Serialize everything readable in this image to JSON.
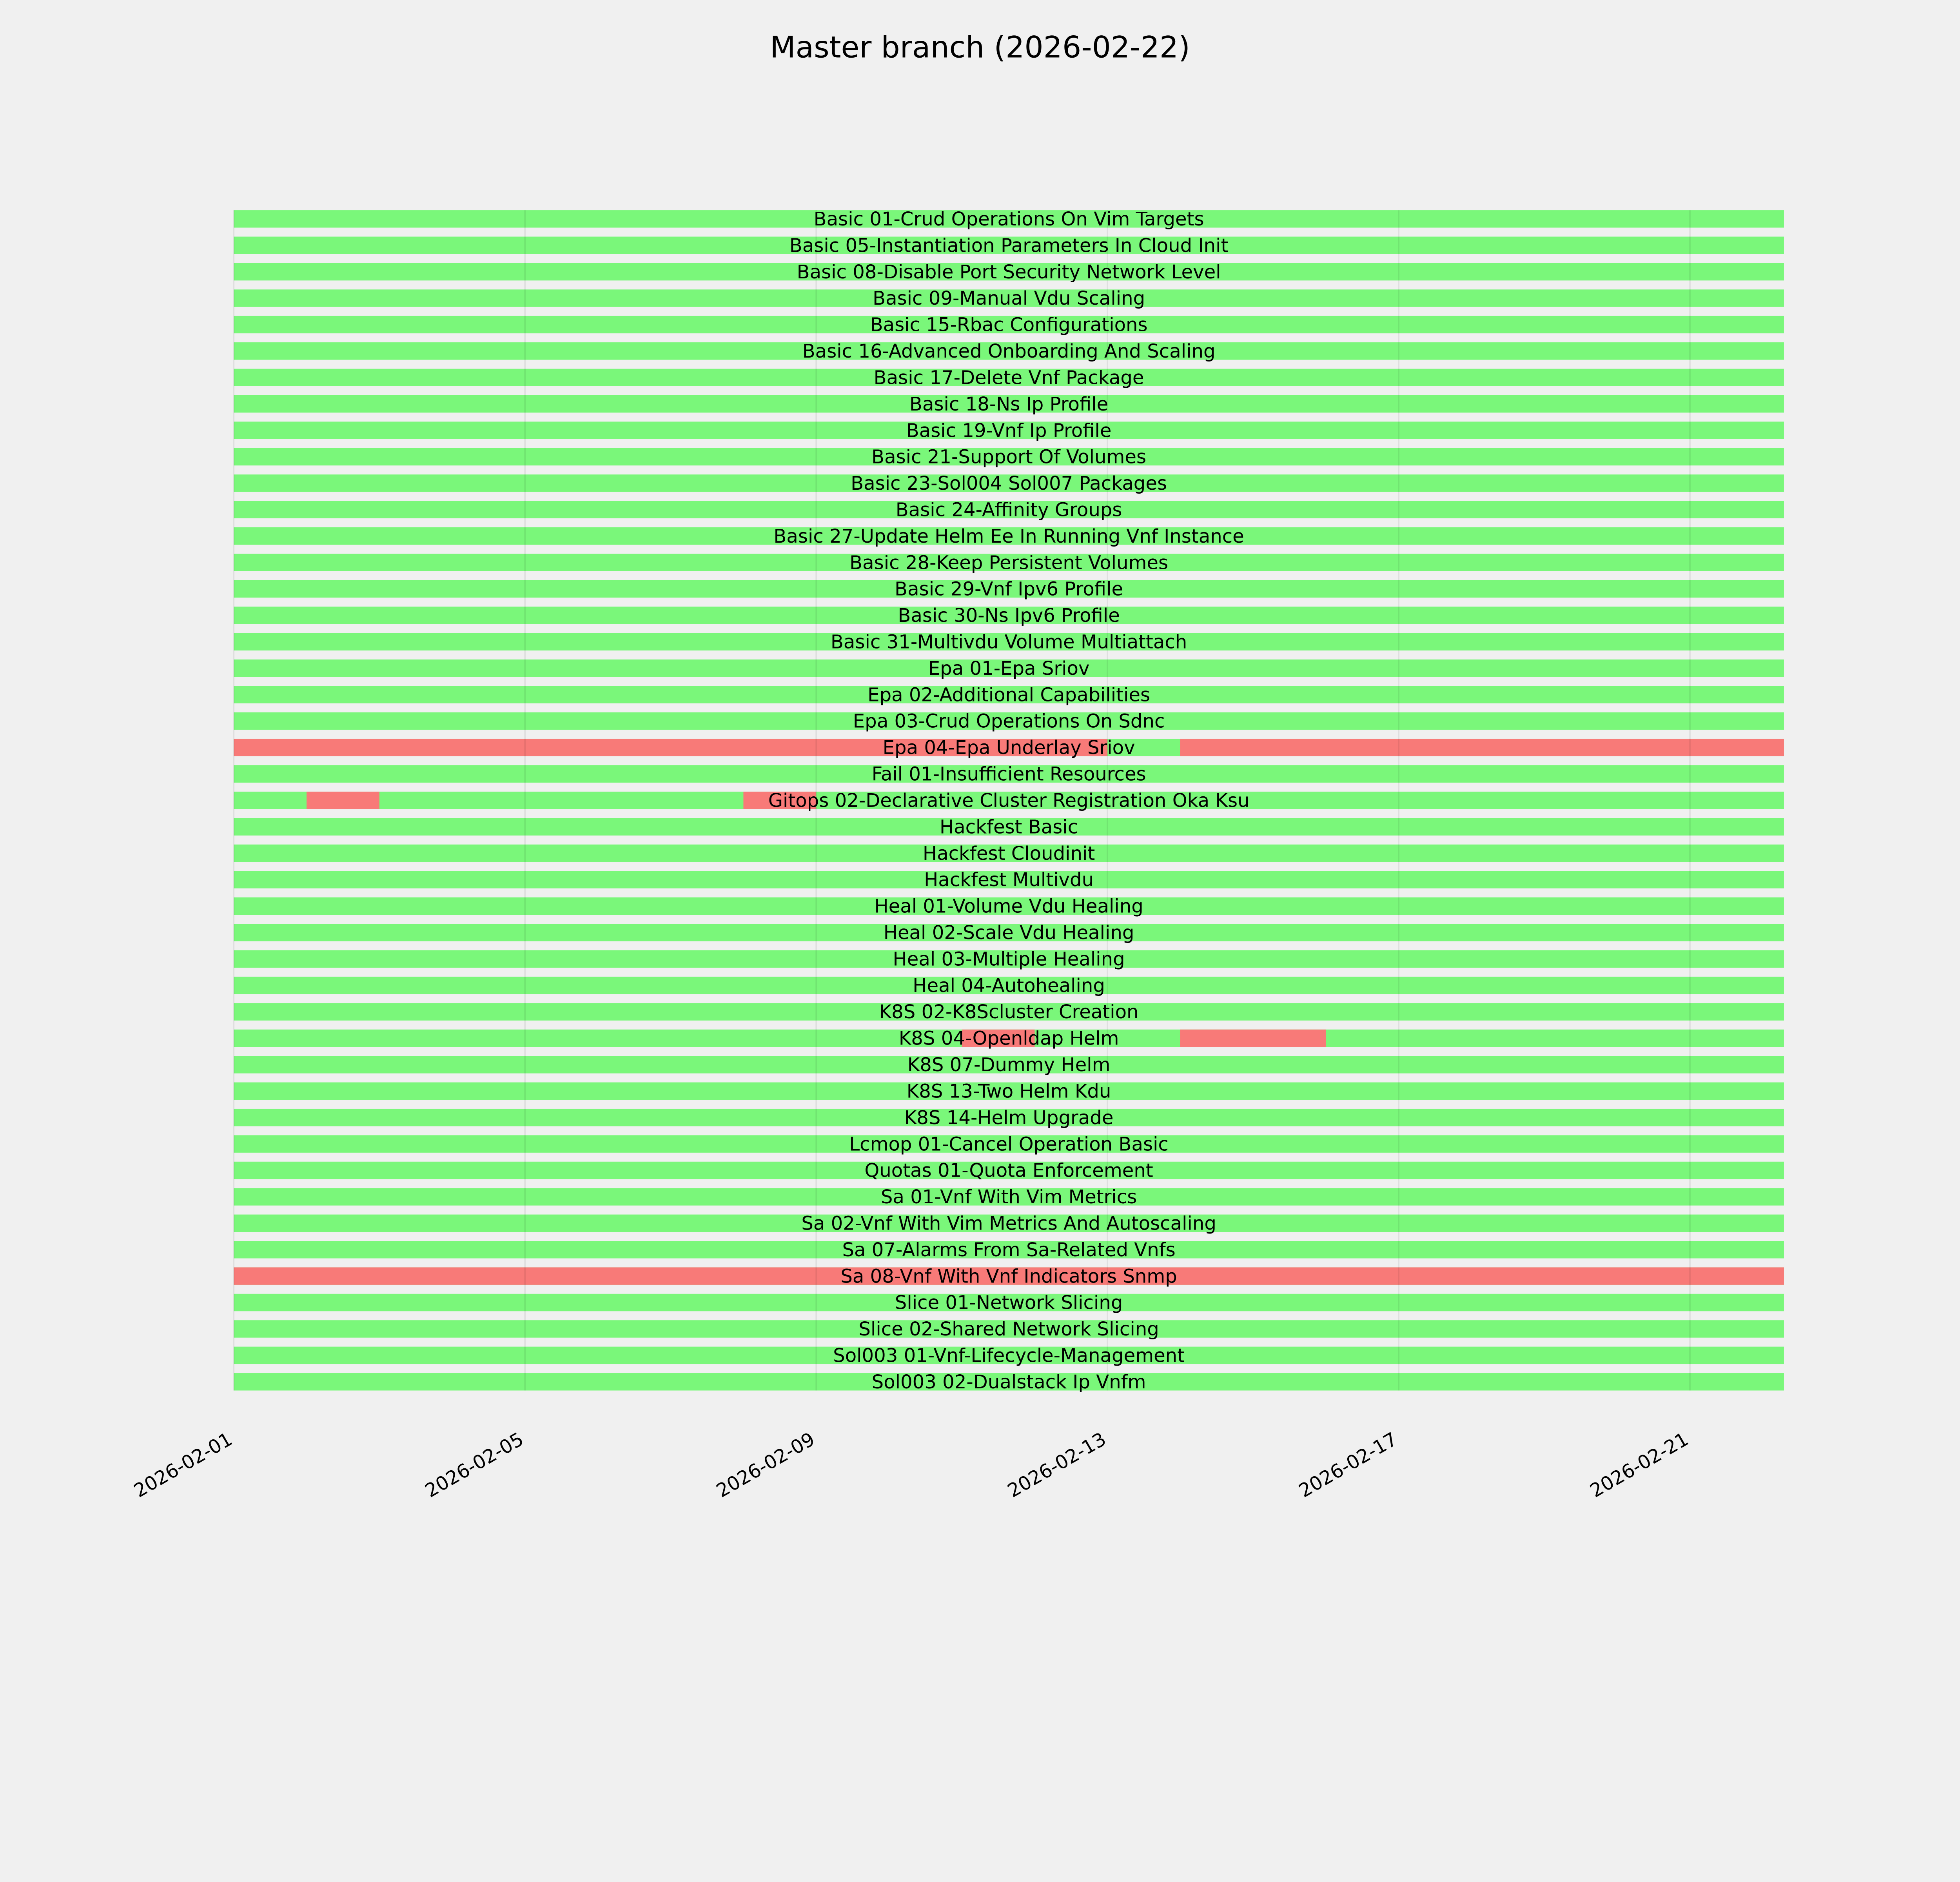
{
  "chart_data": {
    "type": "timeline",
    "title": "Master branch (2026-02-22)",
    "xlabel": "",
    "ylabel": "",
    "xlim": [
      "2026-02-01",
      "2026-02-22T07:00"
    ],
    "x_ticks": [
      "2026-02-01",
      "2026-02-05",
      "2026-02-09",
      "2026-02-13",
      "2026-02-17",
      "2026-02-21"
    ],
    "grid": "vertical at ticks",
    "colors": {
      "pass": "#7af77a",
      "fail": "#f87a78",
      "background": "#f0f0f0"
    },
    "default_status": "pass",
    "rows": [
      {
        "name": "Basic 01-Crud Operations On Vim Targets",
        "fail": []
      },
      {
        "name": "Basic 05-Instantiation Parameters In Cloud Init",
        "fail": []
      },
      {
        "name": "Basic 08-Disable Port Security Network Level",
        "fail": []
      },
      {
        "name": "Basic 09-Manual Vdu Scaling",
        "fail": []
      },
      {
        "name": "Basic 15-Rbac Configurations",
        "fail": []
      },
      {
        "name": "Basic 16-Advanced Onboarding And Scaling",
        "fail": []
      },
      {
        "name": "Basic 17-Delete Vnf Package",
        "fail": []
      },
      {
        "name": "Basic 18-Ns Ip Profile",
        "fail": []
      },
      {
        "name": "Basic 19-Vnf Ip Profile",
        "fail": []
      },
      {
        "name": "Basic 21-Support Of Volumes",
        "fail": []
      },
      {
        "name": "Basic 23-Sol004 Sol007 Packages",
        "fail": []
      },
      {
        "name": "Basic 24-Affinity Groups",
        "fail": []
      },
      {
        "name": "Basic 27-Update Helm Ee In Running Vnf Instance",
        "fail": []
      },
      {
        "name": "Basic 28-Keep Persistent Volumes",
        "fail": []
      },
      {
        "name": "Basic 29-Vnf Ipv6 Profile",
        "fail": []
      },
      {
        "name": "Basic 30-Ns Ipv6 Profile",
        "fail": []
      },
      {
        "name": "Basic 31-Multivdu Volume Multiattach",
        "fail": []
      },
      {
        "name": "Epa 01-Epa Sriov",
        "fail": []
      },
      {
        "name": "Epa 02-Additional Capabilities",
        "fail": []
      },
      {
        "name": "Epa 03-Crud Operations On Sdnc",
        "fail": []
      },
      {
        "name": "Epa 04-Epa Underlay Sriov",
        "fail": [
          [
            "2026-02-01",
            "2026-02-13"
          ],
          [
            "2026-02-14",
            "2026-02-22T07:00"
          ]
        ]
      },
      {
        "name": "Fail 01-Insufficient Resources",
        "fail": []
      },
      {
        "name": "Gitops 02-Declarative Cluster Registration Oka Ksu",
        "fail": [
          [
            "2026-02-02",
            "2026-02-03"
          ],
          [
            "2026-02-08",
            "2026-02-09"
          ]
        ]
      },
      {
        "name": "Hackfest Basic",
        "fail": []
      },
      {
        "name": "Hackfest Cloudinit",
        "fail": []
      },
      {
        "name": "Hackfest Multivdu",
        "fail": []
      },
      {
        "name": "Heal 01-Volume Vdu Healing",
        "fail": []
      },
      {
        "name": "Heal 02-Scale Vdu Healing",
        "fail": []
      },
      {
        "name": "Heal 03-Multiple Healing",
        "fail": []
      },
      {
        "name": "Heal 04-Autohealing",
        "fail": []
      },
      {
        "name": "K8S 02-K8Scluster Creation",
        "fail": []
      },
      {
        "name": "K8S 04-Openldap Helm",
        "fail": [
          [
            "2026-02-11",
            "2026-02-12"
          ],
          [
            "2026-02-14",
            "2026-02-16"
          ]
        ]
      },
      {
        "name": "K8S 07-Dummy Helm",
        "fail": []
      },
      {
        "name": "K8S 13-Two Helm Kdu",
        "fail": []
      },
      {
        "name": "K8S 14-Helm Upgrade",
        "fail": []
      },
      {
        "name": "Lcmop 01-Cancel Operation Basic",
        "fail": []
      },
      {
        "name": "Quotas 01-Quota Enforcement",
        "fail": []
      },
      {
        "name": "Sa 01-Vnf With Vim Metrics",
        "fail": []
      },
      {
        "name": "Sa 02-Vnf With Vim Metrics And Autoscaling",
        "fail": []
      },
      {
        "name": "Sa 07-Alarms From Sa-Related Vnfs",
        "fail": []
      },
      {
        "name": "Sa 08-Vnf With Vnf Indicators Snmp",
        "fail": [
          [
            "2026-02-01",
            "2026-02-22T07:00"
          ]
        ]
      },
      {
        "name": "Slice 01-Network Slicing",
        "fail": []
      },
      {
        "name": "Slice 02-Shared Network Slicing",
        "fail": []
      },
      {
        "name": "Sol003 01-Vnf-Lifecycle-Management",
        "fail": []
      },
      {
        "name": "Sol003 02-Dualstack Ip Vnfm",
        "fail": []
      }
    ]
  }
}
